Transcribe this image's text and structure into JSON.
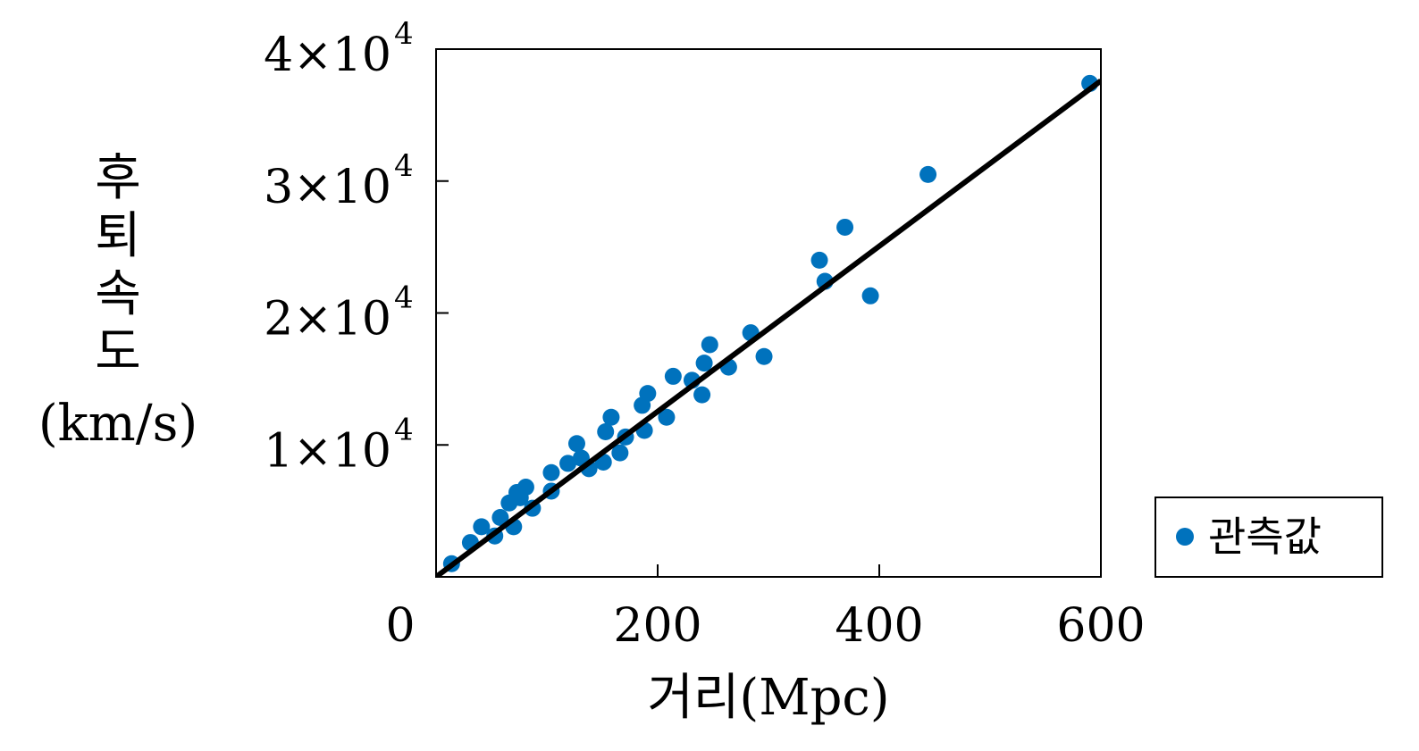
{
  "chart_data": {
    "type": "scatter",
    "xlabel": "거리(Mpc)",
    "ylabel_lines": [
      "후",
      "퇴",
      "속",
      "도",
      "(km/s)"
    ],
    "xlim": [
      0,
      600
    ],
    "ylim": [
      0,
      40000
    ],
    "x_ticks": [
      {
        "value": 0,
        "label": "0"
      },
      {
        "value": 200,
        "label": "200"
      },
      {
        "value": 400,
        "label": "400"
      },
      {
        "value": 600,
        "label": "600"
      }
    ],
    "y_ticks": [
      {
        "value": 10000,
        "mantissa": "1×10",
        "exponent": "4"
      },
      {
        "value": 20000,
        "mantissa": "2×10",
        "exponent": "4"
      },
      {
        "value": 30000,
        "mantissa": "3×10",
        "exponent": "4"
      },
      {
        "value": 40000,
        "mantissa": "4×10",
        "exponent": "4"
      }
    ],
    "grid": false,
    "legend_position": "outside-right-bottom",
    "series": [
      {
        "name": "관측값",
        "type": "scatter",
        "color": "#0072bd",
        "points": [
          {
            "x": 14,
            "y": 1000
          },
          {
            "x": 31,
            "y": 2600
          },
          {
            "x": 41,
            "y": 3800
          },
          {
            "x": 53,
            "y": 3100
          },
          {
            "x": 58,
            "y": 4500
          },
          {
            "x": 66,
            "y": 5600
          },
          {
            "x": 70,
            "y": 3800
          },
          {
            "x": 73,
            "y": 6400
          },
          {
            "x": 76,
            "y": 6000
          },
          {
            "x": 81,
            "y": 6800
          },
          {
            "x": 87,
            "y": 5200
          },
          {
            "x": 104,
            "y": 6500
          },
          {
            "x": 104,
            "y": 7900
          },
          {
            "x": 119,
            "y": 8600
          },
          {
            "x": 127,
            "y": 10100
          },
          {
            "x": 131,
            "y": 9000
          },
          {
            "x": 138,
            "y": 8200
          },
          {
            "x": 151,
            "y": 8700
          },
          {
            "x": 153,
            "y": 11000
          },
          {
            "x": 158,
            "y": 12100
          },
          {
            "x": 166,
            "y": 9400
          },
          {
            "x": 171,
            "y": 10600
          },
          {
            "x": 186,
            "y": 13000
          },
          {
            "x": 188,
            "y": 11100
          },
          {
            "x": 191,
            "y": 13900
          },
          {
            "x": 208,
            "y": 12100
          },
          {
            "x": 214,
            "y": 15200
          },
          {
            "x": 231,
            "y": 14900
          },
          {
            "x": 240,
            "y": 13800
          },
          {
            "x": 242,
            "y": 16200
          },
          {
            "x": 247,
            "y": 17600
          },
          {
            "x": 264,
            "y": 15900
          },
          {
            "x": 284,
            "y": 18500
          },
          {
            "x": 296,
            "y": 16700
          },
          {
            "x": 346,
            "y": 24000
          },
          {
            "x": 351,
            "y": 22400
          },
          {
            "x": 369,
            "y": 26500
          },
          {
            "x": 392,
            "y": 21300
          },
          {
            "x": 444,
            "y": 30500
          },
          {
            "x": 590,
            "y": 37400
          }
        ]
      },
      {
        "type": "line",
        "color": "#000000",
        "points": [
          {
            "x": 0,
            "y": 0
          },
          {
            "x": 600,
            "y": 37600
          }
        ]
      }
    ]
  }
}
